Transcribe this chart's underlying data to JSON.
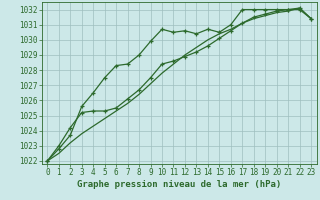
{
  "x": [
    0,
    1,
    2,
    3,
    4,
    5,
    6,
    7,
    8,
    9,
    10,
    11,
    12,
    13,
    14,
    15,
    16,
    17,
    18,
    19,
    20,
    21,
    22,
    23
  ],
  "line1_marked": [
    1022.0,
    1022.8,
    1023.7,
    1025.6,
    1026.5,
    1027.5,
    1028.3,
    1028.4,
    1029.0,
    1029.9,
    1030.7,
    1030.5,
    1030.6,
    1030.4,
    1030.7,
    1030.5,
    1031.0,
    1032.0,
    1032.0,
    1032.0,
    1032.0,
    1032.0,
    1032.0,
    1031.4
  ],
  "line2_smooth": [
    1022.0,
    1022.5,
    1023.2,
    1023.8,
    1024.3,
    1024.8,
    1025.3,
    1025.8,
    1026.4,
    1027.1,
    1027.8,
    1028.4,
    1029.0,
    1029.5,
    1030.0,
    1030.4,
    1030.7,
    1031.1,
    1031.4,
    1031.6,
    1031.8,
    1031.9,
    1032.1,
    1031.4
  ],
  "line3_marked": [
    1022.0,
    1023.0,
    1024.2,
    1025.2,
    1025.3,
    1025.3,
    1025.5,
    1026.1,
    1026.7,
    1027.5,
    1028.4,
    1028.6,
    1028.9,
    1029.2,
    1029.6,
    1030.1,
    1030.6,
    1031.1,
    1031.5,
    1031.7,
    1031.9,
    1032.0,
    1032.1,
    1031.4
  ],
  "ylim": [
    1022,
    1033
  ],
  "yticks": [
    1022,
    1023,
    1024,
    1025,
    1026,
    1027,
    1028,
    1029,
    1030,
    1031,
    1032
  ],
  "xlim": [
    0,
    23
  ],
  "xticks": [
    0,
    1,
    2,
    3,
    4,
    5,
    6,
    7,
    8,
    9,
    10,
    11,
    12,
    13,
    14,
    15,
    16,
    17,
    18,
    19,
    20,
    21,
    22,
    23
  ],
  "line_color": "#2d6a2d",
  "bg_color": "#cce8e8",
  "grid_color": "#9fbfbf",
  "xlabel": "Graphe pression niveau de la mer (hPa)",
  "tick_fontsize": 5.5,
  "xlabel_fontsize": 6.5,
  "marker": "+",
  "linewidth": 0.9,
  "marker_size": 3.5
}
